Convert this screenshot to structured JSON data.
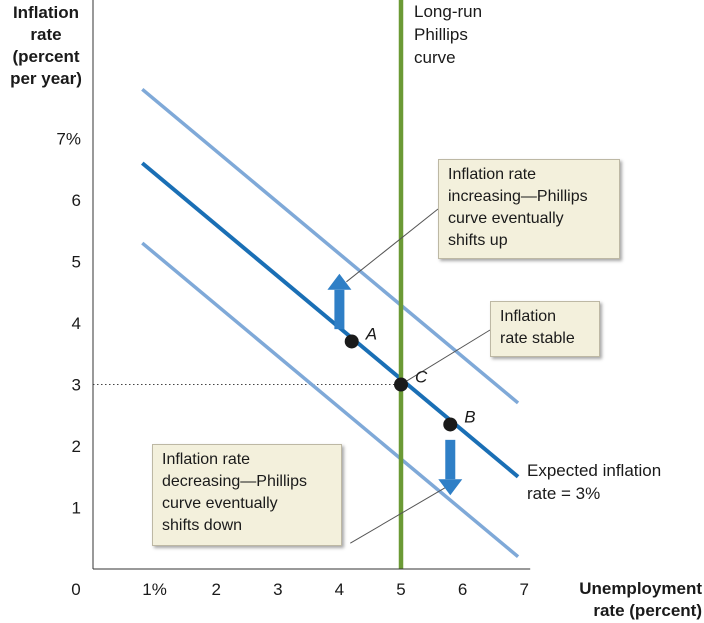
{
  "chart_data": {
    "type": "line",
    "ylabel": "Inflation\nrate\n(percent\nper year)",
    "xlabel": "Unemployment\nrate (percent)",
    "origin_label": "0",
    "xlim": [
      0,
      7
    ],
    "ylim": [
      0,
      8
    ],
    "x_ticks": [
      {
        "value": 1,
        "label": "1%"
      },
      {
        "value": 2,
        "label": "2"
      },
      {
        "value": 3,
        "label": "3"
      },
      {
        "value": 4,
        "label": "4"
      },
      {
        "value": 5,
        "label": "5"
      },
      {
        "value": 6,
        "label": "6"
      },
      {
        "value": 7,
        "label": "7"
      }
    ],
    "y_ticks": [
      {
        "value": 1,
        "label": "1"
      },
      {
        "value": 2,
        "label": "2"
      },
      {
        "value": 3,
        "label": "3"
      },
      {
        "value": 4,
        "label": "4"
      },
      {
        "value": 5,
        "label": "5"
      },
      {
        "value": 6,
        "label": "6"
      },
      {
        "value": 7,
        "label": "7%"
      }
    ],
    "series": [
      {
        "x": [
          0.8,
          6.9
        ],
        "y": [
          7.8,
          2.7
        ],
        "color": "#7fa9d8"
      },
      {
        "name": "Expected inflation\nrate = 3%",
        "x": [
          0.8,
          6.9
        ],
        "y": [
          6.6,
          1.5
        ],
        "color": "#1a6fb5"
      },
      {
        "x": [
          0.8,
          6.9
        ],
        "y": [
          5.3,
          0.2
        ],
        "color": "#7fa9d8"
      }
    ],
    "vertical_line": {
      "name": "Long-run\nPhillips\ncurve",
      "x": 5,
      "color": "#6b9a35"
    },
    "reference_line": {
      "y": 3,
      "x_to": 5
    },
    "points": [
      {
        "label": "A",
        "x": 4.2,
        "y": 3.7
      },
      {
        "label": "C",
        "x": 5.0,
        "y": 3.0
      },
      {
        "label": "B",
        "x": 5.8,
        "y": 2.35
      }
    ],
    "arrows": [
      {
        "direction": "up",
        "x": 4.0,
        "from_y": 3.9,
        "to_y": 4.8
      },
      {
        "direction": "down",
        "x": 5.8,
        "from_y": 2.1,
        "to_y": 1.2
      }
    ],
    "annotations": [
      {
        "id": "up",
        "text": "Inflation rate\nincreasing—Phillips\ncurve eventually\nshifts up"
      },
      {
        "id": "stable",
        "text": "Inflation\nrate stable"
      },
      {
        "id": "down",
        "text": "Inflation rate\ndecreasing—Phillips\ncurve eventually\nshifts down"
      }
    ],
    "colors": {
      "arrow": "#2f7fc6",
      "axis": "#333333"
    }
  }
}
